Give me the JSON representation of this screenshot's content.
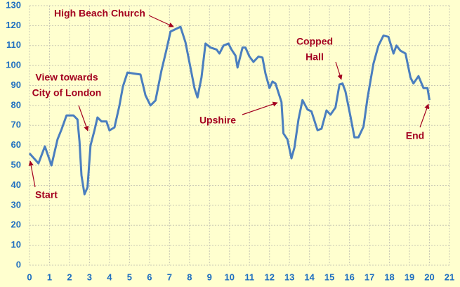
{
  "chart_data": {
    "type": "line",
    "x": [
      0,
      0.45,
      0.77,
      1.1,
      1.4,
      1.6,
      1.85,
      2.2,
      2.4,
      2.5,
      2.6,
      2.75,
      2.9,
      3.05,
      3.25,
      3.4,
      3.6,
      3.85,
      4.0,
      4.25,
      4.5,
      4.67,
      4.9,
      5.2,
      5.55,
      5.8,
      6.05,
      6.3,
      6.6,
      6.85,
      7.05,
      7.4,
      7.55,
      7.8,
      8.05,
      8.25,
      8.4,
      8.6,
      8.8,
      9.05,
      9.35,
      9.5,
      9.7,
      9.95,
      10.1,
      10.3,
      10.4,
      10.65,
      10.8,
      11.0,
      11.2,
      11.45,
      11.65,
      11.8,
      12.0,
      12.15,
      12.3,
      12.6,
      12.7,
      12.9,
      13.1,
      13.25,
      13.45,
      13.65,
      13.9,
      14.1,
      14.4,
      14.6,
      14.85,
      15.05,
      15.3,
      15.5,
      15.65,
      15.8,
      16.05,
      16.25,
      16.45,
      16.7,
      16.9,
      17.2,
      17.45,
      17.7,
      17.95,
      18.2,
      18.35,
      18.55,
      18.8,
      19.05,
      19.2,
      19.45,
      19.7,
      19.9,
      20.0
    ],
    "series": [
      {
        "color": "#4a7ebf",
        "values": [
          56,
          51,
          59.5,
          50,
          63,
          68,
          75,
          75,
          73,
          62,
          45,
          35.5,
          39,
          60,
          67.5,
          74,
          72,
          72,
          67.5,
          69,
          80,
          89.5,
          96.5,
          96,
          95.5,
          85,
          80,
          82.5,
          97.5,
          108,
          117,
          118.7,
          119.4,
          111.6,
          99,
          88.7,
          84,
          94,
          111,
          109,
          108,
          106,
          110,
          111,
          108,
          105,
          99,
          109,
          109,
          104.5,
          101.8,
          104.5,
          104,
          96,
          88.7,
          92,
          91,
          81.7,
          66,
          63,
          53.5,
          59,
          73,
          82.7,
          78,
          77,
          67.6,
          68.3,
          77.5,
          75.4,
          79,
          90.5,
          91,
          87,
          74.6,
          64,
          64,
          69.4,
          83.5,
          101,
          110,
          115,
          114.4,
          106,
          110,
          107.4,
          106,
          94,
          91,
          94.7,
          88.7,
          88.7,
          82.7
        ]
      }
    ],
    "xlim": [
      0,
      21
    ],
    "xticks": [
      0,
      1,
      2,
      3,
      4,
      5,
      6,
      7,
      8,
      9,
      10,
      11,
      12,
      13,
      14,
      15,
      16,
      17,
      18,
      19,
      20,
      21
    ],
    "ylim": [
      0,
      130
    ],
    "yticks": [
      0,
      10,
      20,
      30,
      40,
      50,
      60,
      70,
      80,
      90,
      100,
      110,
      120,
      130
    ],
    "grid": true,
    "annotations": [
      [
        "High Beach Church"
      ],
      [
        "View towards",
        "City of London"
      ],
      [
        "Start"
      ],
      [
        "Upshire"
      ],
      [
        "Copped",
        "Hall"
      ],
      [
        "End"
      ]
    ]
  }
}
